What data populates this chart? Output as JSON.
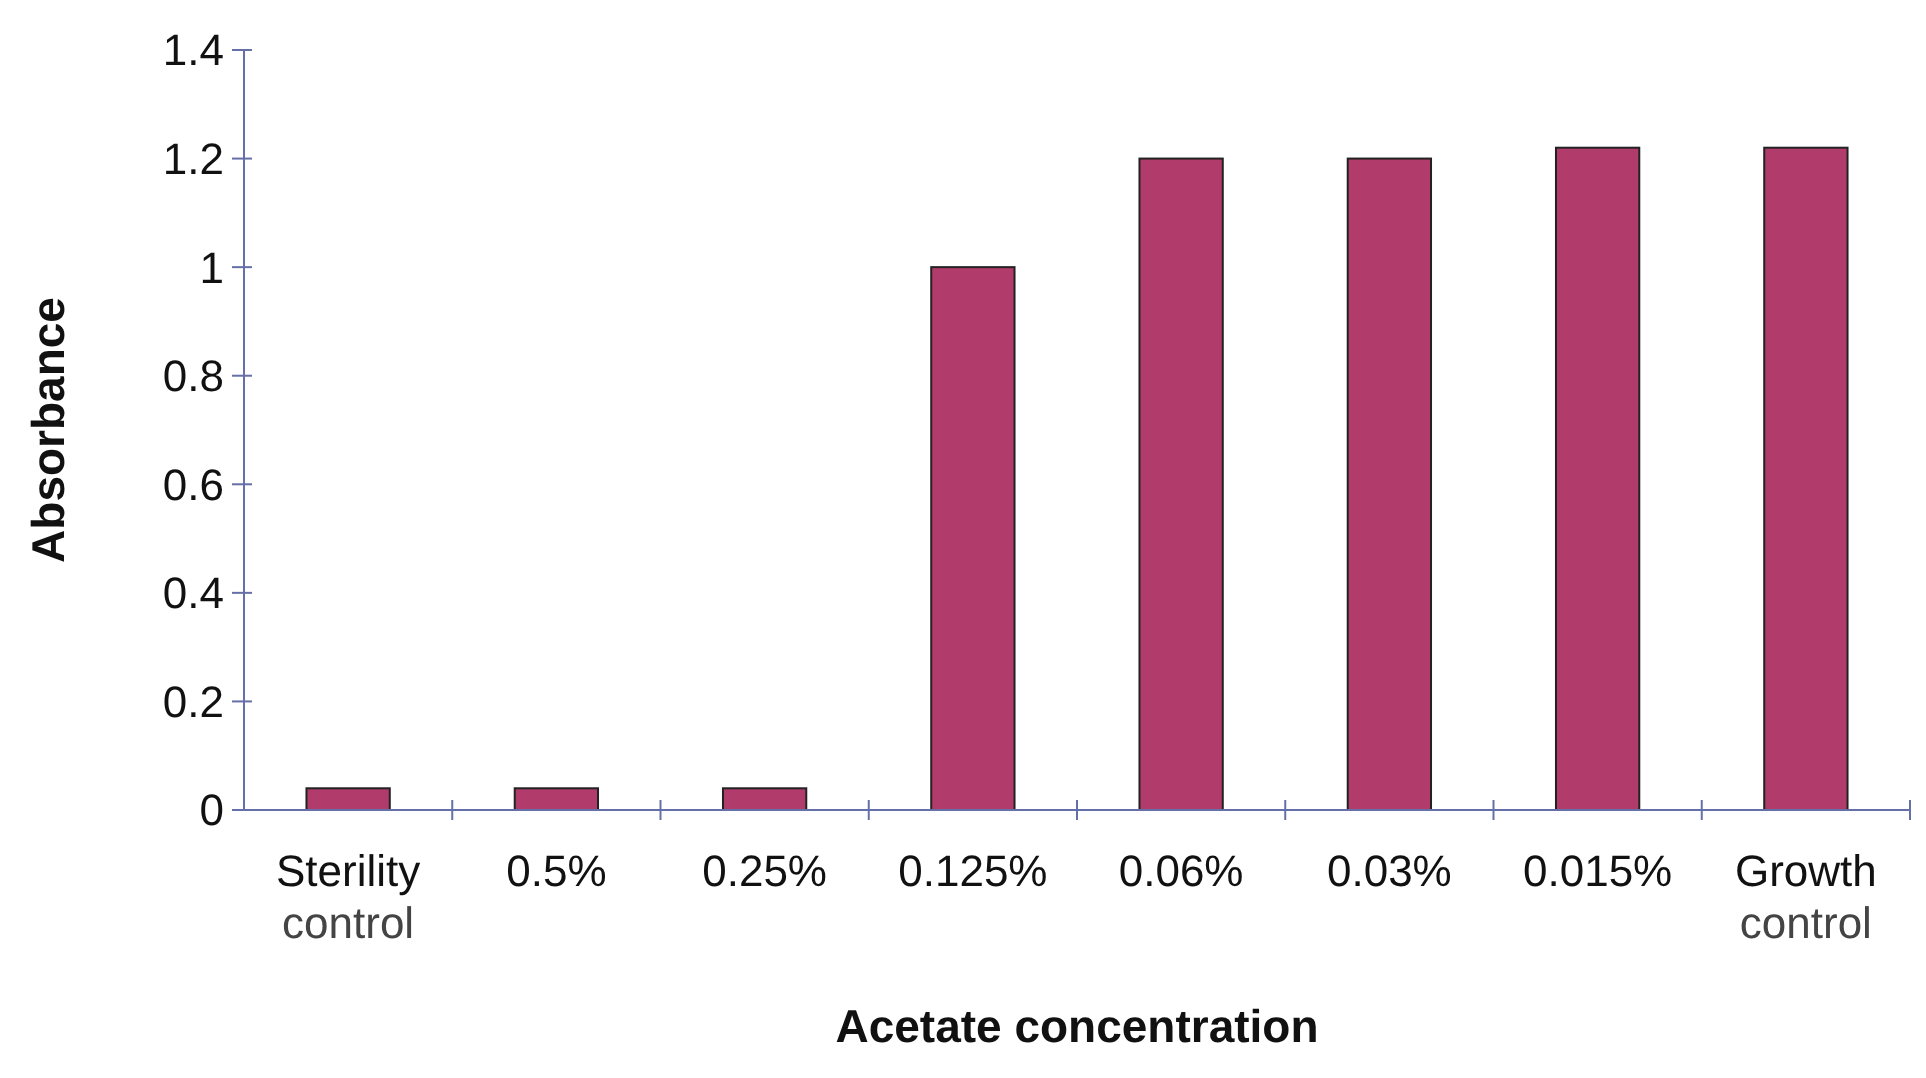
{
  "chart_data": {
    "type": "bar",
    "xlabel": "Acetate concentration",
    "ylabel": "Absorbance",
    "categories": [
      "Sterility control",
      "0.5%",
      "0.25%",
      "0.125%",
      "0.06%",
      "0.03%",
      "0.015%",
      "Growth control"
    ],
    "values": [
      0.04,
      0.04,
      0.04,
      1.0,
      1.2,
      1.2,
      1.22,
      1.22
    ],
    "color": "#b13c6c",
    "ylim": [
      0,
      1.4
    ],
    "yticks": [
      0,
      0.2,
      0.4,
      0.6,
      0.8,
      1,
      1.2,
      1.4
    ],
    "grid": false
  }
}
